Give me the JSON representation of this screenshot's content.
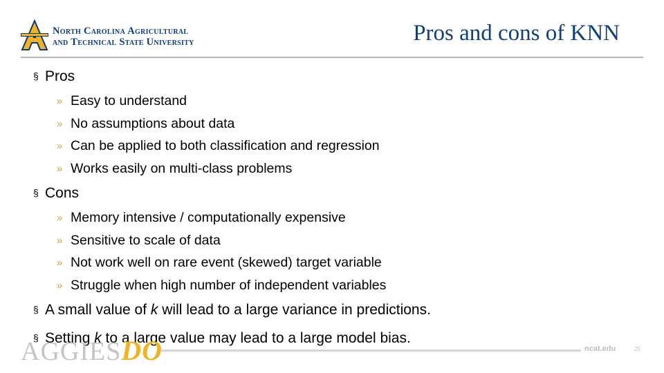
{
  "header": {
    "logo": {
      "line1": "North Carolina Agricultural",
      "line2": "and Technical State University",
      "colors": {
        "gold": "#f0b323",
        "navy": "#0a3a7a"
      }
    },
    "title": "Pros and cons of KNN"
  },
  "content": {
    "pros": {
      "label": "Pros",
      "items": [
        "Easy to understand",
        "No assumptions about data",
        "Can be applied to both classification and regression",
        "Works easily on multi-class problems"
      ]
    },
    "cons": {
      "label": "Cons",
      "items": [
        "Memory intensive / computationally expensive",
        "Sensitive to scale of data",
        "Not work well on rare event (skewed) target variable",
        "Struggle when high number of independent variables"
      ]
    },
    "note1": {
      "before": "A small value of ",
      "k": "k",
      "after": " will lead to a large variance in predictions."
    },
    "note2": {
      "before": "Setting ",
      "k": "k",
      "after": " to a large value may lead to a large model bias."
    },
    "bullet_mark": "§",
    "sub_mark": "»"
  },
  "footer": {
    "brand_a": "AGGIES",
    "brand_b": "DO",
    "site": "ncat.edu",
    "page": "25"
  }
}
